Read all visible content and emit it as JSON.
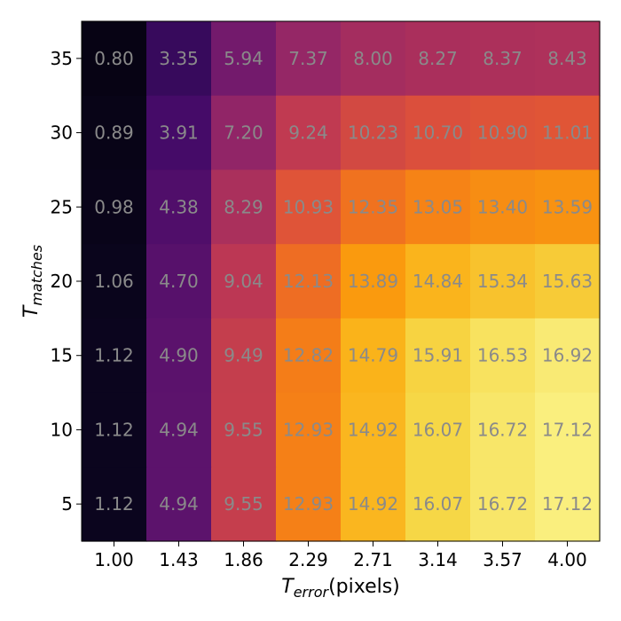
{
  "chart_data": {
    "type": "heatmap",
    "title": "",
    "x": [
      "1.00",
      "1.43",
      "1.86",
      "2.29",
      "2.71",
      "3.14",
      "3.57",
      "4.00"
    ],
    "y": [
      "35",
      "30",
      "25",
      "20",
      "15",
      "10",
      "5"
    ],
    "xlabel_main": "T",
    "xlabel_sub": "error",
    "xlabel_suffix": "(pixels)",
    "ylabel_main": "T",
    "ylabel_sub": "matches",
    "colormap": "inferno",
    "value_range": [
      0.8,
      17.12
    ],
    "values": [
      [
        0.8,
        3.35,
        5.94,
        7.37,
        8.0,
        8.27,
        8.37,
        8.43
      ],
      [
        0.89,
        3.91,
        7.2,
        9.24,
        10.23,
        10.7,
        10.9,
        11.01
      ],
      [
        0.98,
        4.38,
        8.29,
        10.93,
        12.35,
        13.05,
        13.4,
        13.59
      ],
      [
        1.06,
        4.7,
        9.04,
        12.13,
        13.89,
        14.84,
        15.34,
        15.63
      ],
      [
        1.12,
        4.9,
        9.49,
        12.82,
        14.79,
        15.91,
        16.53,
        16.92
      ],
      [
        1.12,
        4.94,
        9.55,
        12.93,
        14.92,
        16.07,
        16.72,
        17.12
      ],
      [
        1.12,
        4.94,
        9.55,
        12.93,
        14.92,
        16.07,
        16.72,
        17.12
      ]
    ],
    "labels": [
      [
        "0.80",
        "3.35",
        "5.94",
        "7.37",
        "8.00",
        "8.27",
        "8.37",
        "8.43"
      ],
      [
        "0.89",
        "3.91",
        "7.20",
        "9.24",
        "10.23",
        "10.70",
        "10.90",
        "11.01"
      ],
      [
        "0.98",
        "4.38",
        "8.29",
        "10.93",
        "12.35",
        "13.05",
        "13.40",
        "13.59"
      ],
      [
        "1.06",
        "4.70",
        "9.04",
        "12.13",
        "13.89",
        "14.84",
        "15.34",
        "15.63"
      ],
      [
        "1.12",
        "4.90",
        "9.49",
        "12.82",
        "14.79",
        "15.91",
        "16.53",
        "16.92"
      ],
      [
        "1.12",
        "4.94",
        "9.55",
        "12.93",
        "14.92",
        "16.07",
        "16.72",
        "17.12"
      ],
      [
        "1.12",
        "4.94",
        "9.55",
        "12.93",
        "14.92",
        "16.07",
        "16.72",
        "17.12"
      ]
    ]
  }
}
